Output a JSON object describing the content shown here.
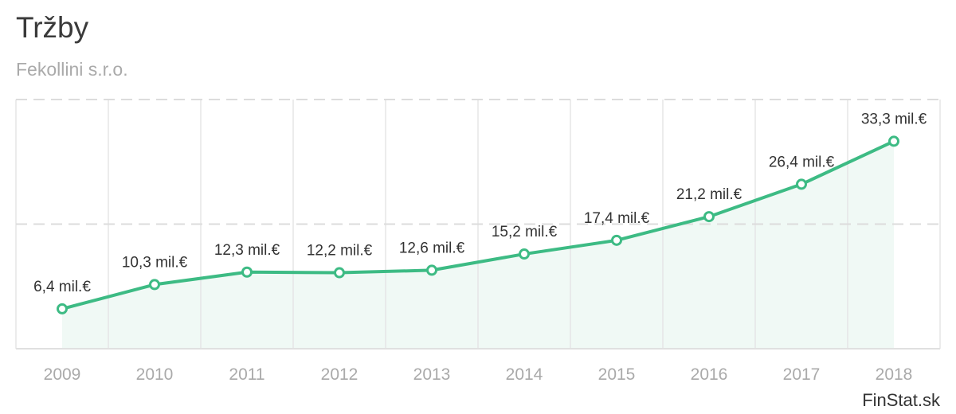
{
  "chart_data": {
    "type": "line",
    "title": "Tržby",
    "subtitle": "Fekollini s.r.o.",
    "categories": [
      "2009",
      "2010",
      "2011",
      "2012",
      "2013",
      "2014",
      "2015",
      "2016",
      "2017",
      "2018"
    ],
    "values": [
      6.4,
      10.3,
      12.3,
      12.2,
      12.6,
      15.2,
      17.4,
      21.2,
      26.4,
      33.3
    ],
    "labels": [
      "6,4 mil.€",
      "10,3 mil.€",
      "12,3 mil.€",
      "12,2 mil.€",
      "12,6 mil.€",
      "15,2 mil.€",
      "17,4 mil.€",
      "21,2 mil.€",
      "26,4 mil.€",
      "33,3 mil.€"
    ],
    "xlabel": "",
    "ylabel": "",
    "ylim": [
      0,
      40
    ],
    "yticks": [
      0,
      20,
      40
    ],
    "grid": true,
    "legend": "none",
    "colors": {
      "line": "#3dbb84",
      "area": "#f0f9f5"
    }
  },
  "credit": "FinStat.sk"
}
